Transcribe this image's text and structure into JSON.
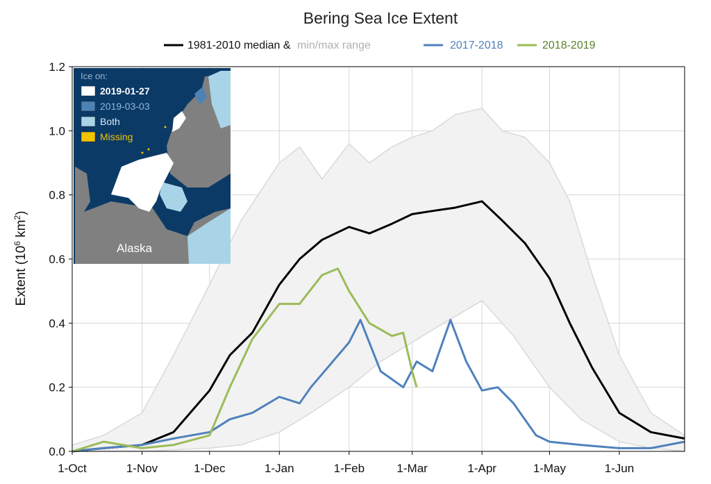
{
  "chart_data": {
    "type": "line",
    "title": "Bering Sea Ice Extent",
    "ylabel_base": "Extent (10",
    "ylabel_sup": "6",
    "ylabel_unit": " km",
    "ylabel_sup2": "2",
    "ylabel_close": ")",
    "xlabel": "",
    "ylim": [
      0,
      1.2
    ],
    "xlim": [
      "1-Oct",
      "30-Jun"
    ],
    "x_ticks": [
      "1-Oct",
      "1-Nov",
      "1-Dec",
      "1-Jan",
      "1-Feb",
      "1-Mar",
      "1-Apr",
      "1-May",
      "1-Jun"
    ],
    "y_ticks": [
      "0.0",
      "0.2",
      "0.4",
      "0.6",
      "0.8",
      "1.0",
      "1.2"
    ],
    "grid": true,
    "legend_position": "top",
    "legend": {
      "median_label": "1981-2010 median &",
      "range_label": "min/max range",
      "s1_label": "2017-2018",
      "s2_label": "2018-2019"
    },
    "colors": {
      "median": "#000000",
      "range_fill": "#f2f2f2",
      "range_line": "#d9d9d9",
      "s1": "#4f81bd",
      "s2": "#9bbb59",
      "range_text": "#b0b0b0"
    },
    "series": [
      {
        "name": "1981-2010 median",
        "x": [
          "1-Oct",
          "15-Oct",
          "1-Nov",
          "15-Nov",
          "1-Dec",
          "10-Dec",
          "20-Dec",
          "1-Jan",
          "10-Jan",
          "20-Jan",
          "1-Feb",
          "10-Feb",
          "20-Feb",
          "1-Mar",
          "10-Mar",
          "20-Mar",
          "1-Apr",
          "10-Apr",
          "20-Apr",
          "1-May",
          "10-May",
          "20-May",
          "1-Jun",
          "15-Jun",
          "30-Jun"
        ],
        "values": [
          0.0,
          0.01,
          0.02,
          0.06,
          0.19,
          0.3,
          0.37,
          0.52,
          0.6,
          0.66,
          0.7,
          0.68,
          0.71,
          0.74,
          0.75,
          0.76,
          0.78,
          0.72,
          0.65,
          0.54,
          0.4,
          0.26,
          0.12,
          0.06,
          0.04
        ]
      },
      {
        "name": "min/max range (max)",
        "x": [
          "1-Oct",
          "15-Oct",
          "1-Nov",
          "15-Nov",
          "1-Dec",
          "15-Dec",
          "1-Jan",
          "10-Jan",
          "20-Jan",
          "1-Feb",
          "10-Feb",
          "20-Feb",
          "1-Mar",
          "10-Mar",
          "20-Mar",
          "1-Apr",
          "10-Apr",
          "20-Apr",
          "1-May",
          "10-May",
          "20-May",
          "1-Jun",
          "15-Jun",
          "30-Jun"
        ],
        "values": [
          0.02,
          0.05,
          0.12,
          0.3,
          0.52,
          0.72,
          0.9,
          0.95,
          0.85,
          0.96,
          0.9,
          0.95,
          0.98,
          1.0,
          1.05,
          1.07,
          1.0,
          0.98,
          0.9,
          0.78,
          0.55,
          0.3,
          0.12,
          0.05
        ]
      },
      {
        "name": "min/max range (min)",
        "x": [
          "1-Oct",
          "1-Nov",
          "1-Dec",
          "15-Dec",
          "1-Jan",
          "15-Jan",
          "1-Feb",
          "15-Feb",
          "1-Mar",
          "15-Mar",
          "1-Apr",
          "15-Apr",
          "1-May",
          "15-May",
          "1-Jun",
          "15-Jun",
          "30-Jun"
        ],
        "values": [
          0.0,
          0.0,
          0.01,
          0.02,
          0.06,
          0.12,
          0.2,
          0.28,
          0.34,
          0.4,
          0.47,
          0.36,
          0.2,
          0.1,
          0.03,
          0.01,
          0.0
        ]
      },
      {
        "name": "2017-2018",
        "x": [
          "1-Oct",
          "15-Oct",
          "1-Nov",
          "15-Nov",
          "1-Dec",
          "10-Dec",
          "20-Dec",
          "1-Jan",
          "10-Jan",
          "15-Jan",
          "1-Feb",
          "6-Feb",
          "15-Feb",
          "25-Feb",
          "3-Mar",
          "10-Mar",
          "18-Mar",
          "25-Mar",
          "1-Apr",
          "8-Apr",
          "15-Apr",
          "25-Apr",
          "1-May",
          "15-May",
          "1-Jun",
          "15-Jun",
          "30-Jun"
        ],
        "values": [
          0.0,
          0.01,
          0.02,
          0.04,
          0.06,
          0.1,
          0.12,
          0.17,
          0.15,
          0.2,
          0.34,
          0.41,
          0.25,
          0.2,
          0.28,
          0.25,
          0.41,
          0.28,
          0.19,
          0.2,
          0.15,
          0.05,
          0.03,
          0.02,
          0.01,
          0.01,
          0.03
        ]
      },
      {
        "name": "2018-2019",
        "x": [
          "1-Oct",
          "15-Oct",
          "1-Nov",
          "15-Nov",
          "1-Dec",
          "10-Dec",
          "20-Dec",
          "1-Jan",
          "10-Jan",
          "20-Jan",
          "27-Jan",
          "1-Feb",
          "10-Feb",
          "15-Feb",
          "20-Feb",
          "25-Feb",
          "1-Mar",
          "3-Mar"
        ],
        "values": [
          0.0,
          0.03,
          0.01,
          0.02,
          0.05,
          0.2,
          0.35,
          0.46,
          0.46,
          0.55,
          0.57,
          0.5,
          0.4,
          0.38,
          0.36,
          0.37,
          0.25,
          0.2
        ]
      }
    ]
  },
  "inset": {
    "heading": "Ice on:",
    "items": [
      {
        "label": "2019-01-27",
        "swatch": "#ffffff",
        "text_color": "#ffffff",
        "bold": true
      },
      {
        "label": "2019-03-03",
        "swatch": "#4f82b4",
        "text_color": "#8fb7dd",
        "bold": false
      },
      {
        "label": "Both",
        "swatch": "#a9d3e6",
        "text_color": "#d8edf7",
        "bold": false
      },
      {
        "label": "Missing",
        "swatch": "#f2c300",
        "text_color": "#f2c300",
        "bold": false
      }
    ],
    "place_label": "Alaska",
    "ocean_color": "#0b3a66",
    "land_color": "#808080"
  }
}
